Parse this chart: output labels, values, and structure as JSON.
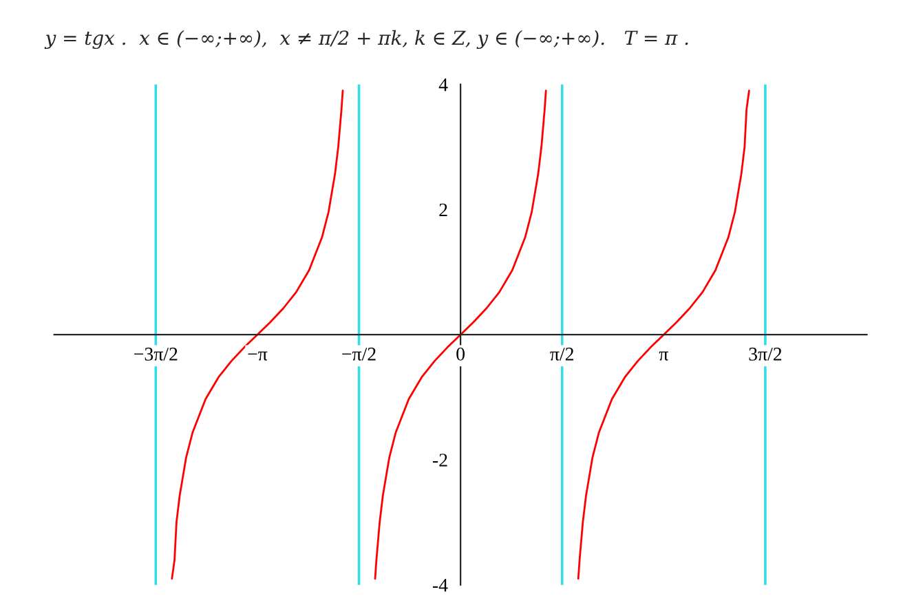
{
  "chart_data": {
    "type": "line",
    "title": "y = tgx .  x ∈ (−∞;+∞),  x ≠ π/2 + πk, k ∈ Z, y ∈ (−∞;+∞).   T = π .",
    "series": [
      {
        "color": "#ff0000",
        "x": [
          -4.46,
          -4.42,
          -4.39,
          -4.34,
          -4.24,
          -4.14,
          -3.94,
          -3.74,
          -3.54,
          -3.34,
          -3.14,
          -2.94,
          -2.74,
          -2.54,
          -2.34,
          -2.14,
          -2.04,
          -1.94,
          -1.89,
          -1.84,
          -1.82
        ],
        "values": [
          -3.9,
          -3.6,
          -3.0,
          -2.57,
          -1.96,
          -1.56,
          -1.03,
          -0.68,
          -0.42,
          -0.2,
          0,
          0.2,
          0.42,
          0.68,
          1.03,
          1.56,
          1.96,
          2.57,
          3.0,
          3.6,
          3.9
        ]
      },
      {
        "color": "#ff0000",
        "x": [
          -1.32,
          -1.3,
          -1.25,
          -1.2,
          -1.1,
          -1.0,
          -0.8,
          -0.6,
          -0.4,
          -0.2,
          0,
          0.2,
          0.4,
          0.6,
          0.8,
          1.0,
          1.1,
          1.2,
          1.25,
          1.3,
          1.32
        ],
        "values": [
          -3.9,
          -3.6,
          -3.0,
          -2.57,
          -1.96,
          -1.56,
          -1.03,
          -0.68,
          -0.42,
          -0.2,
          0,
          0.2,
          0.42,
          0.68,
          1.03,
          1.56,
          1.96,
          2.57,
          3.0,
          3.6,
          3.9
        ]
      },
      {
        "color": "#ff0000",
        "x": [
          1.82,
          1.84,
          1.89,
          1.94,
          2.04,
          2.14,
          2.34,
          2.54,
          2.74,
          2.94,
          3.14,
          3.34,
          3.54,
          3.74,
          3.94,
          4.14,
          4.24,
          4.34,
          4.39,
          4.42,
          4.46
        ],
        "values": [
          -3.9,
          -3.6,
          -3.0,
          -2.57,
          -1.96,
          -1.56,
          -1.03,
          -0.68,
          -0.42,
          -0.2,
          0,
          0.2,
          0.42,
          0.68,
          1.03,
          1.56,
          1.96,
          2.57,
          3.0,
          3.6,
          3.9
        ]
      }
    ],
    "xlim": [
      -6.28,
      6.28
    ],
    "ylim": [
      -4,
      4
    ],
    "xticks": [
      {
        "value": -4.71,
        "label": "−3π/2"
      },
      {
        "value": -3.14,
        "label": "−π"
      },
      {
        "value": -1.57,
        "label": "−π/2"
      },
      0,
      {
        "value": 1.57,
        "label": "π/2"
      },
      {
        "value": 3.14,
        "label": "π"
      },
      {
        "value": 4.71,
        "label": "3π/2"
      }
    ],
    "yticks": [
      -4,
      -2,
      2,
      4
    ],
    "ref_lines": [
      {
        "axis": "x",
        "value": -4.71,
        "color": "#33dde8"
      },
      {
        "axis": "x",
        "value": -1.57,
        "color": "#33dde8"
      },
      {
        "axis": "x",
        "value": 1.57,
        "color": "#33dde8"
      },
      {
        "axis": "x",
        "value": 4.71,
        "color": "#33dde8"
      }
    ],
    "grid": false,
    "legend": false
  }
}
